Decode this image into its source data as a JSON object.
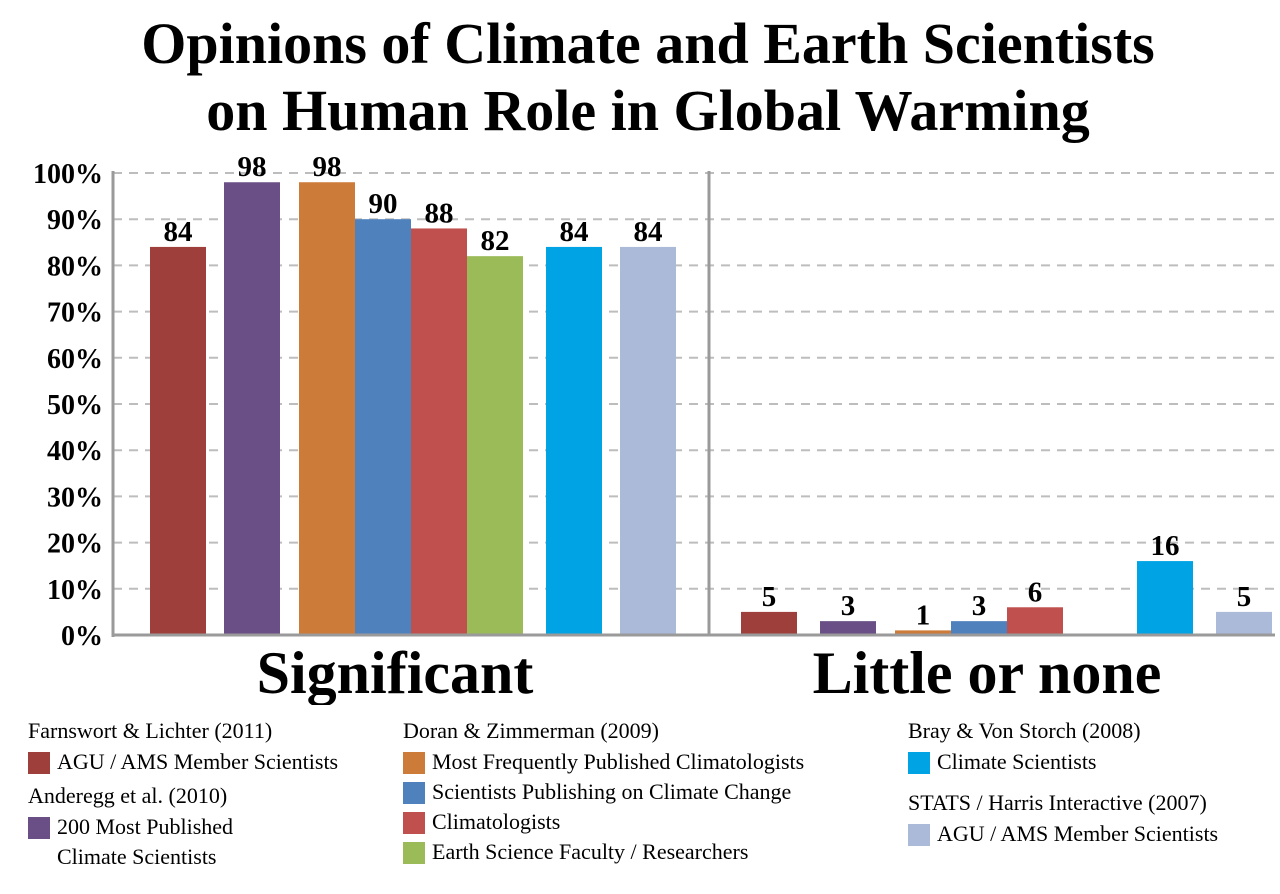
{
  "chart_data": {
    "type": "bar",
    "title_lines": [
      "Opinions of Climate and Earth Scientists",
      "on Human Role in Global Warming"
    ],
    "categories": [
      "Significant",
      "Little or none"
    ],
    "yticks": [
      "0%",
      "10%",
      "20%",
      "30%",
      "40%",
      "50%",
      "60%",
      "70%",
      "80%",
      "90%",
      "100%"
    ],
    "ylim": [
      0,
      100
    ],
    "grid": true,
    "series": [
      {
        "name": "AGU / AMS Member Scientists",
        "source": "Farnswort & Lichter (2011)",
        "color": "#9e3f3c",
        "values": [
          84,
          5
        ]
      },
      {
        "name": "200 Most Published\nClimate Scientists",
        "source": "Anderegg et al. (2010)",
        "color": "#6a4f86",
        "values": [
          98,
          3
        ]
      },
      {
        "name": "Most Frequently Published Climatologists",
        "source": "Doran & Zimmerman (2009)",
        "color": "#cd7b38",
        "values": [
          98,
          1
        ]
      },
      {
        "name": "Scientists Publishing on Climate Change",
        "source": "Doran & Zimmerman (2009)",
        "color": "#4f81bd",
        "values": [
          90,
          3
        ]
      },
      {
        "name": "Climatologists",
        "source": "Doran & Zimmerman (2009)",
        "color": "#c0504d",
        "values": [
          88,
          6
        ]
      },
      {
        "name": "Earth Science Faculty / Researchers",
        "source": "Doran & Zimmerman (2009)",
        "color": "#9bbb59",
        "values": [
          82,
          null
        ]
      },
      {
        "name": "Climate Scientists",
        "source": "Bray & Von Storch (2008)",
        "color": "#00a3e4",
        "values": [
          84,
          16
        ]
      },
      {
        "name": "AGU / AMS Member Scientists",
        "source": "STATS / Harris Interactive (2007)",
        "color": "#abbad8",
        "values": [
          84,
          5
        ]
      }
    ]
  },
  "legend": {
    "col1": {
      "src1": "Farnswort & Lichter (2011)",
      "item1": "AGU / AMS Member Scientists",
      "src2": "Anderegg et al. (2010)",
      "item2": "200 Most Published\nClimate Scientists"
    },
    "col2": {
      "src1": "Doran & Zimmerman (2009)",
      "item1": "Most Frequently Published Climatologists",
      "item2": "Scientists Publishing on Climate Change",
      "item3": "Climatologists",
      "item4": "Earth Science Faculty / Researchers"
    },
    "col3": {
      "src1": "Bray & Von Storch (2008)",
      "item1": "Climate Scientists",
      "src2": "STATS / Harris Interactive (2007)",
      "item2": "AGU / AMS Member Scientists"
    }
  }
}
